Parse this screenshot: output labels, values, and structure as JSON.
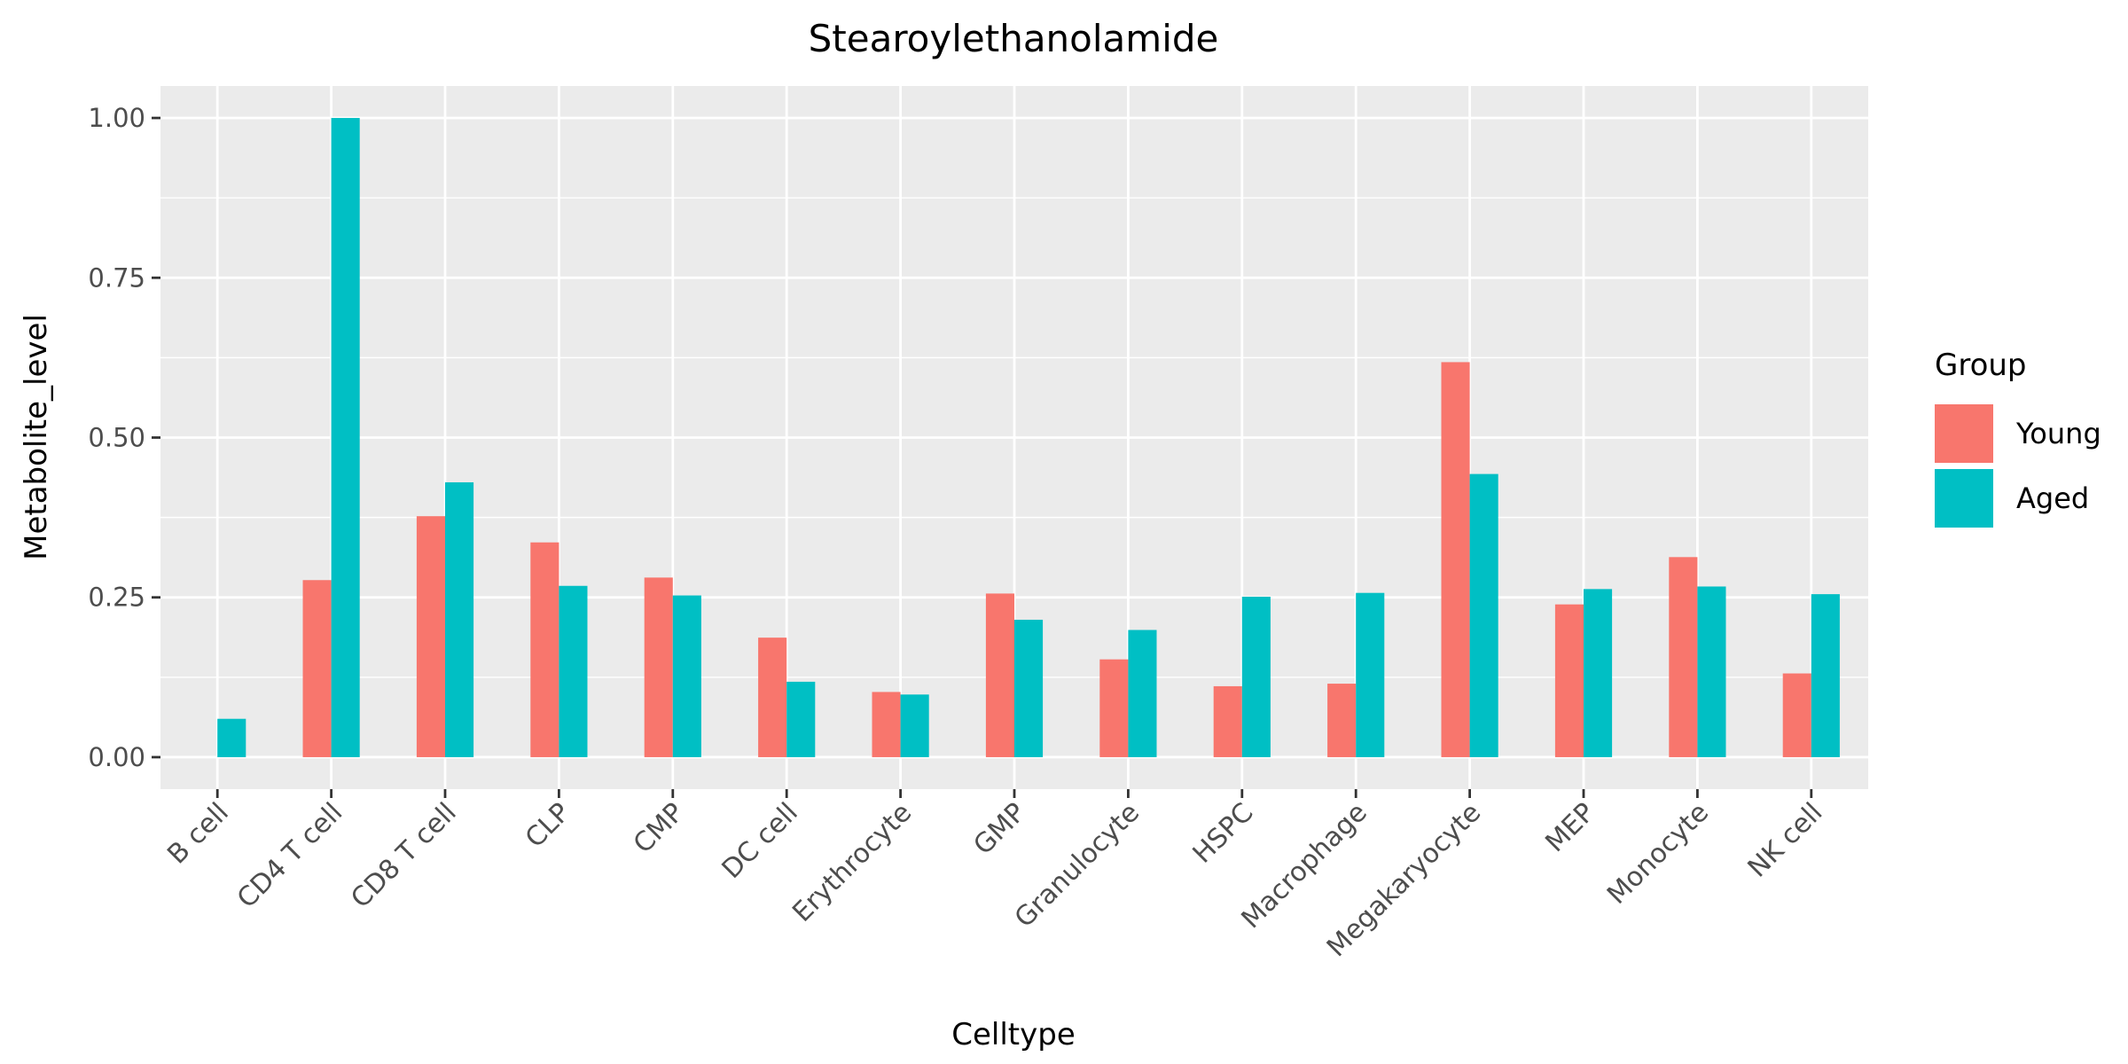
{
  "chart_data": {
    "type": "bar",
    "title": "Stearoylethanolamide",
    "xlabel": "Celltype",
    "ylabel": "Metabolite_level",
    "ylim": [
      -0.05,
      1.05
    ],
    "yticks": [
      0.0,
      0.25,
      0.5,
      0.75,
      1.0
    ],
    "ytick_labels": [
      "0.00",
      "0.25",
      "0.50",
      "0.75",
      "1.00"
    ],
    "grid": true,
    "legend": {
      "title": "Group",
      "placement": "right"
    },
    "categories": [
      "B cell",
      "CD4 T cell",
      "CD8 T cell",
      "CLP",
      "CMP",
      "DC cell",
      "Erythrocyte",
      "GMP",
      "Granulocyte",
      "HSPC",
      "Macrophage",
      "Megakaryocyte",
      "MEP",
      "Monocyte",
      "NK cell"
    ],
    "series": [
      {
        "name": "Young",
        "color": "#F8766D",
        "values": [
          null,
          0.277,
          0.377,
          0.336,
          0.281,
          0.187,
          0.102,
          0.256,
          0.153,
          0.111,
          0.115,
          0.618,
          0.239,
          0.313,
          0.131
        ]
      },
      {
        "name": "Aged",
        "color": "#00BFC4",
        "values": [
          0.06,
          1.0,
          0.43,
          0.268,
          0.253,
          0.118,
          0.098,
          0.215,
          0.199,
          0.251,
          0.257,
          0.443,
          0.263,
          0.267,
          0.255
        ]
      }
    ]
  }
}
